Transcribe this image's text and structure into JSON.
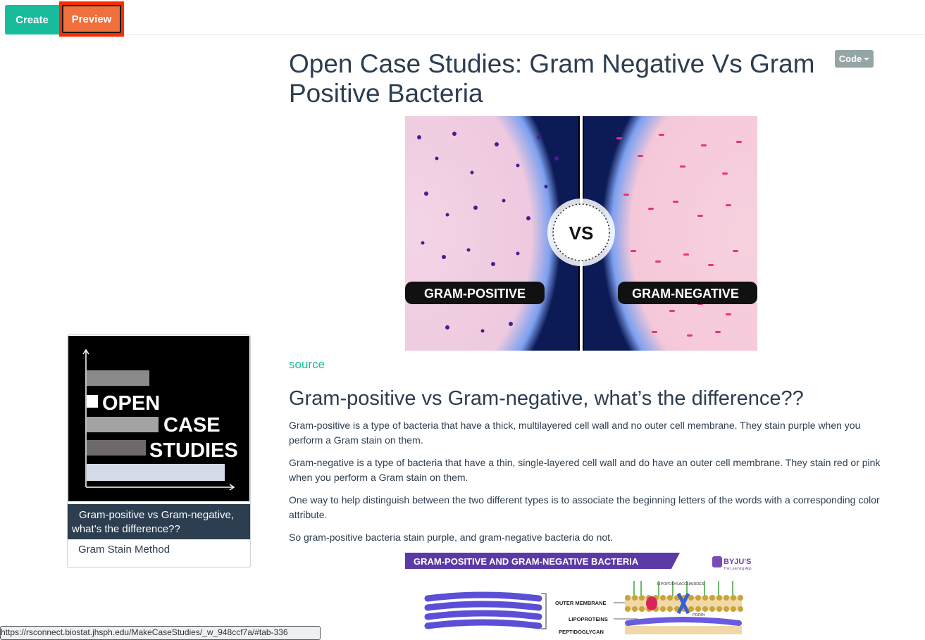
{
  "toolbar": {
    "create_label": "Create",
    "preview_label": "Preview"
  },
  "code_menu": {
    "label": "Code"
  },
  "sidebar": {
    "logo": {
      "line1": "OPEN",
      "line2": "CASE",
      "line3": "STUDIES"
    },
    "items": [
      {
        "label": "Gram-positive vs Gram-negative, what’s the difference??",
        "active": true
      },
      {
        "label": "Gram Stain Method",
        "active": false
      }
    ]
  },
  "main": {
    "title": "Open Case Studies: Gram Negative Vs Gram Positive Bacteria",
    "hero_image": {
      "left_label": "GRAM-POSITIVE",
      "right_label": "GRAM-NEGATIVE",
      "center_label": "VS"
    },
    "source_link": "source",
    "section_heading": "Gram-positive vs Gram-negative, what’s the difference??",
    "paragraphs": [
      "Gram-positive is a type of bacteria that have a thick, multilayered cell wall and no outer cell membrane. They stain purple when you perform a Gram stain on them.",
      "Gram-negative is a type of bacteria that have a thin, single-layered cell wall and do have an outer cell membrane. They stain red or pink when you perform a Gram stain on them.",
      "One way to help distinguish between the two different types is to associate the beginning letters of the words with a corresponding color attribute.",
      "So gram-positive bacteria stain purple, and gram-negative bacteria do not."
    ],
    "diagram": {
      "banner": "GRAM-POSITIVE AND GRAM-NEGATIVE BACTERIA",
      "brand": "BYJU'S",
      "brand_sub": "The Learning App",
      "labels": {
        "outer_membrane": "OUTER MEMBRANE",
        "lipoproteins": "LIPOPROTEINS",
        "peptidoglycan": "PEPTIDOGLYCAN",
        "lipopolysaccharides": "LIPOPOLYSACCHARIDES",
        "porin": "PORIN"
      }
    }
  },
  "status_url": "https://rsconnect.biostat.jhsph.edu/MakeCaseStudies/_w_948ccf7a/#tab-336"
}
